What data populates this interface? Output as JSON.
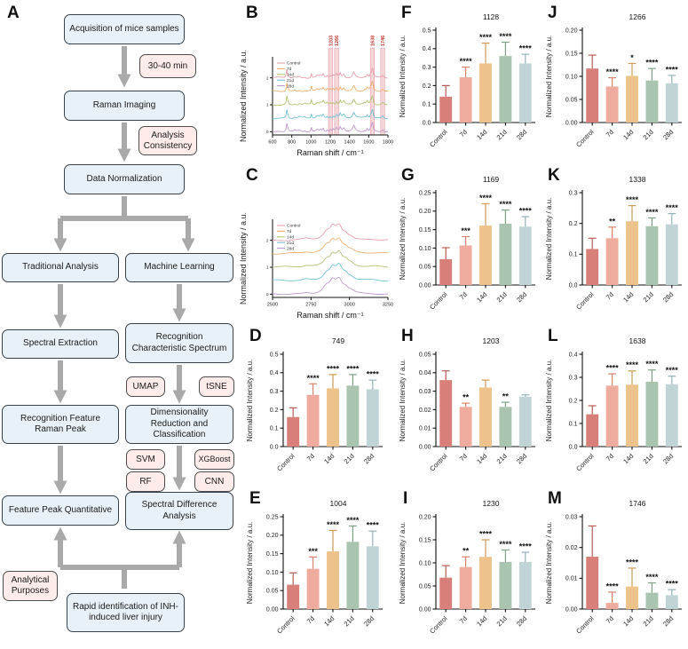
{
  "panel_letters": {
    "A": "A",
    "B": "B",
    "C": "C",
    "D": "D",
    "E": "E",
    "F": "F",
    "G": "G",
    "H": "H",
    "I": "I",
    "J": "J",
    "K": "K",
    "L": "L",
    "M": "M"
  },
  "flowchart": {
    "nodes": {
      "acquisition": "Acquisition of mice samples",
      "raman_imaging": "Raman Imaging",
      "data_normalization": "Data Normalization",
      "traditional_analysis": "Traditional Analysis",
      "machine_learning": "Machine Learning",
      "spectral_extraction": "Spectral Extraction",
      "recognition_spectrum": "Recognition Characteristic Spectrum",
      "recognition_peak": "Recognition Feature Raman Peak",
      "dimensionality_reduction": "Dimensionality Reduction and Classification",
      "feature_quantitative": "Feature Peak Quantitative",
      "spectral_difference": "Spectral Difference Analysis",
      "rapid_identification": "Rapid identification of INH-induced liver injury"
    },
    "tags": {
      "time": "30-40 min",
      "consistency": "Analysis Consistency",
      "umap": "UMAP",
      "tsne": "tSNE",
      "svm": "SVM",
      "xgboost": "XGBoost",
      "rf": "RF",
      "cnn": "CNN",
      "analytical": "Analytical Purposes"
    }
  },
  "colors": {
    "bar_fill": [
      "#d87f79",
      "#efab9e",
      "#eec28b",
      "#aac5af",
      "#c0d4d6"
    ],
    "bar_err": [
      "#b85b55",
      "#d9836f",
      "#d29a55",
      "#7fa287",
      "#93b3b8"
    ],
    "spectra": [
      "#e89fae",
      "#f0b070",
      "#b2c472",
      "#72c3d4",
      "#bf99cf"
    ],
    "band_fill": "rgba(219,110,122,0.28)",
    "band_edge": "rgba(195,75,88,0.55)",
    "band_label": "#c0392b",
    "arrow": "#a9a9a9"
  },
  "chart_data": [
    {
      "id": "B",
      "type": "line",
      "title": "",
      "xlabel": "Raman shift / cm⁻¹",
      "ylabel": "Normalized Intensity / a.u.",
      "x_range": [
        600,
        1800
      ],
      "xticks": [
        600,
        800,
        1000,
        1200,
        1400,
        1600,
        1800
      ],
      "yticks": [
        0,
        1,
        2
      ],
      "legend": [
        "Control",
        "7d",
        "14d",
        "21d",
        "28d"
      ],
      "offsets": [
        2.0,
        1.5,
        1.0,
        0.5,
        0.0
      ],
      "amplitude": 0.42,
      "peaks": [
        [
          749,
          7,
          0.75
        ],
        [
          762,
          5,
          0.2
        ],
        [
          830,
          10,
          0.1
        ],
        [
          880,
          12,
          0.12
        ],
        [
          935,
          10,
          0.08
        ],
        [
          1004,
          5,
          0.4
        ],
        [
          1064,
          12,
          0.18
        ],
        [
          1100,
          15,
          0.2
        ],
        [
          1128,
          8,
          0.3
        ],
        [
          1169,
          9,
          0.18
        ],
        [
          1203,
          8,
          0.15
        ],
        [
          1230,
          10,
          0.18
        ],
        [
          1266,
          10,
          0.3
        ],
        [
          1304,
          9,
          0.38
        ],
        [
          1340,
          12,
          0.32
        ],
        [
          1445,
          14,
          0.5
        ],
        [
          1555,
          10,
          0.12
        ],
        [
          1585,
          9,
          0.28
        ],
        [
          1620,
          8,
          0.25
        ],
        [
          1638,
          9,
          0.8
        ],
        [
          1746,
          9,
          0.22
        ]
      ],
      "highlight_bands": [
        {
          "x": 1203,
          "label": "1203"
        },
        {
          "x": 1266,
          "label": "1266"
        },
        {
          "x": 1638,
          "label": "1638"
        },
        {
          "x": 1746,
          "label": "1746"
        }
      ]
    },
    {
      "id": "C",
      "type": "line",
      "title": "",
      "xlabel": "Raman shift / cm⁻¹",
      "ylabel": "Normalized Intensity / a.u.",
      "x_range": [
        2500,
        3250
      ],
      "xticks": [
        2500,
        2750,
        3000,
        3250
      ],
      "yticks": [
        0,
        1,
        2
      ],
      "legend": [
        "Control",
        "7d",
        "14d",
        "21d",
        "28d"
      ],
      "offsets": [
        2.0,
        1.5,
        1.0,
        0.5,
        0.0
      ],
      "amplitude": 0.48,
      "peaks": [
        [
          2720,
          25,
          0.1
        ],
        [
          2850,
          28,
          0.5
        ],
        [
          2890,
          22,
          0.75
        ],
        [
          2932,
          26,
          1.0
        ],
        [
          2975,
          20,
          0.35
        ],
        [
          3010,
          22,
          0.2
        ],
        [
          3160,
          40,
          0.04
        ]
      ],
      "highlight_bands": []
    },
    {
      "id": "D",
      "type": "bar",
      "title": "749",
      "ylabel": "Normalized Intensity / a.u.",
      "categories": [
        "Control",
        "7d",
        "14d",
        "21d",
        "28d"
      ],
      "values": [
        0.16,
        0.28,
        0.315,
        0.33,
        0.31
      ],
      "errors": [
        0.05,
        0.06,
        0.075,
        0.06,
        0.05
      ],
      "sig": [
        "",
        "****",
        "****",
        "****",
        "****"
      ],
      "ylim": [
        0,
        0.5
      ],
      "ytick_step": 0.1,
      "decimals": 1
    },
    {
      "id": "E",
      "type": "bar",
      "title": "1004",
      "ylabel": "Normalized Intensity / a.u.",
      "categories": [
        "Control",
        "7d",
        "14d",
        "21d",
        "28d"
      ],
      "values": [
        0.066,
        0.109,
        0.156,
        0.182,
        0.17
      ],
      "errors": [
        0.032,
        0.032,
        0.057,
        0.043,
        0.041
      ],
      "sig": [
        "",
        "***",
        "****",
        "****",
        "****"
      ],
      "ylim": [
        0,
        0.25
      ],
      "ytick_step": 0.05,
      "decimals": 2
    },
    {
      "id": "F",
      "type": "bar",
      "title": "1128",
      "ylabel": "Normalized Intensity / a.u.",
      "categories": [
        "Control",
        "7d",
        "14d",
        "21d",
        "28d"
      ],
      "values": [
        0.14,
        0.245,
        0.32,
        0.36,
        0.32
      ],
      "errors": [
        0.06,
        0.055,
        0.11,
        0.075,
        0.05
      ],
      "sig": [
        "",
        "****",
        "****",
        "****",
        "****"
      ],
      "ylim": [
        0,
        0.5
      ],
      "ytick_step": 0.1,
      "decimals": 1
    },
    {
      "id": "G",
      "type": "bar",
      "title": "1169",
      "ylabel": "Normalized Intensity / a.u.",
      "categories": [
        "Control",
        "7d",
        "14d",
        "21d",
        "28d"
      ],
      "values": [
        0.07,
        0.107,
        0.161,
        0.166,
        0.158
      ],
      "errors": [
        0.031,
        0.024,
        0.059,
        0.037,
        0.027
      ],
      "sig": [
        "",
        "***",
        "****",
        "****",
        "****"
      ],
      "ylim": [
        0,
        0.25
      ],
      "ytick_step": 0.05,
      "decimals": 2
    },
    {
      "id": "H",
      "type": "bar",
      "title": "1203",
      "ylabel": "Normalized Intensity / a.u.",
      "categories": [
        "Control",
        "7d",
        "14d",
        "21d",
        "28d"
      ],
      "values": [
        0.036,
        0.0215,
        0.032,
        0.0215,
        0.027
      ],
      "errors": [
        0.005,
        0.002,
        0.004,
        0.0025,
        0.001
      ],
      "sig": [
        "",
        "**",
        "",
        "**",
        ""
      ],
      "ylim": [
        0,
        0.05
      ],
      "ytick_step": 0.01,
      "decimals": 2
    },
    {
      "id": "I",
      "type": "bar",
      "title": "1230",
      "ylabel": "Normalized Intensity / a.u.",
      "categories": [
        "Control",
        "7d",
        "14d",
        "21d",
        "28d"
      ],
      "values": [
        0.068,
        0.091,
        0.113,
        0.102,
        0.102
      ],
      "errors": [
        0.026,
        0.022,
        0.037,
        0.026,
        0.021
      ],
      "sig": [
        "",
        "**",
        "****",
        "****",
        "****"
      ],
      "ylim": [
        0,
        0.2
      ],
      "ytick_step": 0.05,
      "decimals": 2
    },
    {
      "id": "J",
      "type": "bar",
      "title": "1266",
      "ylabel": "Normalized Intensity / a.u.",
      "categories": [
        "Control",
        "7d",
        "14d",
        "21d",
        "28d"
      ],
      "values": [
        0.117,
        0.078,
        0.101,
        0.091,
        0.085
      ],
      "errors": [
        0.029,
        0.019,
        0.027,
        0.026,
        0.017
      ],
      "sig": [
        "",
        "****",
        "*",
        "****",
        "****"
      ],
      "ylim": [
        0,
        0.2
      ],
      "ytick_step": 0.05,
      "decimals": 2
    },
    {
      "id": "K",
      "type": "bar",
      "title": "1338",
      "ylabel": "Normalized Intensity / a.u.",
      "categories": [
        "Control",
        "7d",
        "14d",
        "21d",
        "28d"
      ],
      "values": [
        0.117,
        0.152,
        0.207,
        0.191,
        0.197
      ],
      "errors": [
        0.035,
        0.036,
        0.051,
        0.027,
        0.035
      ],
      "sig": [
        "",
        "**",
        "****",
        "****",
        "****"
      ],
      "ylim": [
        0,
        0.3
      ],
      "ytick_step": 0.1,
      "decimals": 1
    },
    {
      "id": "L",
      "type": "bar",
      "title": "1638",
      "ylabel": "Normalized Intensity / a.u.",
      "categories": [
        "Control",
        "7d",
        "14d",
        "21d",
        "28d"
      ],
      "values": [
        0.14,
        0.264,
        0.268,
        0.281,
        0.27
      ],
      "errors": [
        0.037,
        0.051,
        0.06,
        0.051,
        0.035
      ],
      "sig": [
        "",
        "****",
        "****",
        "****",
        "****"
      ],
      "ylim": [
        0,
        0.4
      ],
      "ytick_step": 0.1,
      "decimals": 1
    },
    {
      "id": "M",
      "type": "bar",
      "title": "1746",
      "ylabel": "Normalized Intensity / a.u.",
      "categories": [
        "Control",
        "7d",
        "14d",
        "21d",
        "28d"
      ],
      "values": [
        0.017,
        0.002,
        0.0073,
        0.0053,
        0.0045
      ],
      "errors": [
        0.01,
        0.0035,
        0.006,
        0.0032,
        0.0018
      ],
      "sig": [
        "",
        "****",
        "****",
        "****",
        "****"
      ],
      "ylim": [
        0,
        0.03
      ],
      "ytick_step": 0.01,
      "decimals": 2
    }
  ]
}
